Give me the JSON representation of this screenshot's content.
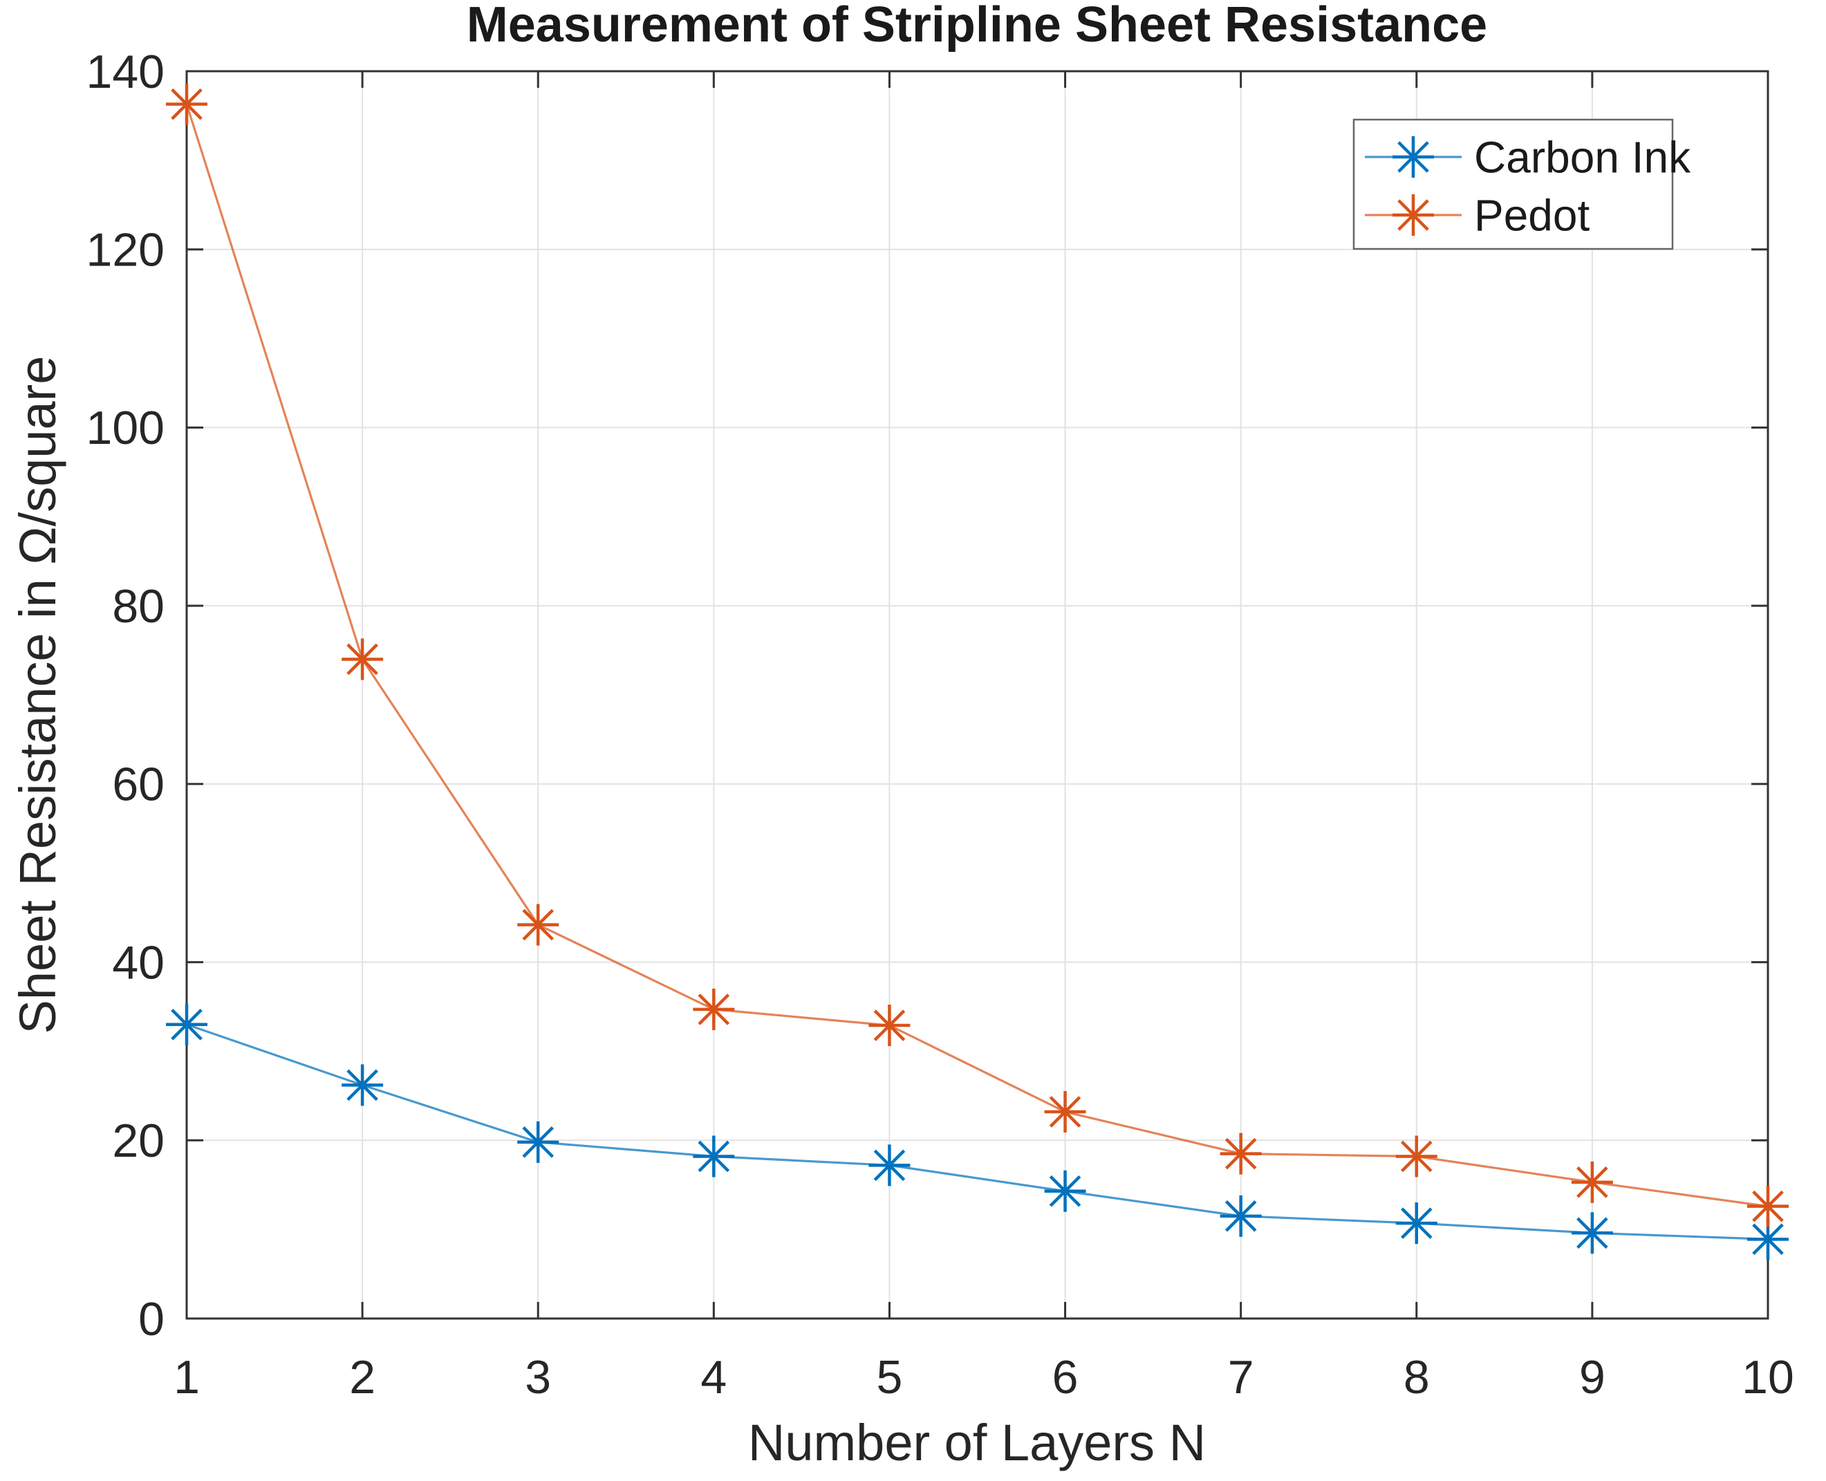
{
  "chart_data": {
    "type": "line",
    "title": "Measurement of Stripline Sheet Resistance",
    "xlabel": "Number of Layers N",
    "ylabel": "Sheet Resistance in Ω/square",
    "x": [
      1,
      2,
      3,
      4,
      5,
      6,
      7,
      8,
      9,
      10
    ],
    "series": [
      {
        "name": "Carbon Ink",
        "color": "#0072BD",
        "marker": "asterisk",
        "values": [
          33.0,
          26.2,
          19.8,
          18.2,
          17.2,
          14.3,
          11.5,
          10.7,
          9.6,
          8.9
        ]
      },
      {
        "name": "Pedot",
        "color": "#D95319",
        "marker": "asterisk",
        "values": [
          136.3,
          74.0,
          44.2,
          34.7,
          32.9,
          23.2,
          18.5,
          18.2,
          15.3,
          12.6
        ]
      }
    ],
    "xlim": [
      1,
      10
    ],
    "ylim": [
      0,
      140
    ],
    "xticks": [
      1,
      2,
      3,
      4,
      5,
      6,
      7,
      8,
      9,
      10
    ],
    "yticks": [
      0,
      20,
      40,
      60,
      80,
      100,
      120,
      140
    ],
    "grid": true,
    "legend_position": "top-right",
    "colors": {
      "axis": "#333333",
      "grid": "#e2e2e2",
      "legend_border": "#666666",
      "background": "#ffffff"
    }
  }
}
